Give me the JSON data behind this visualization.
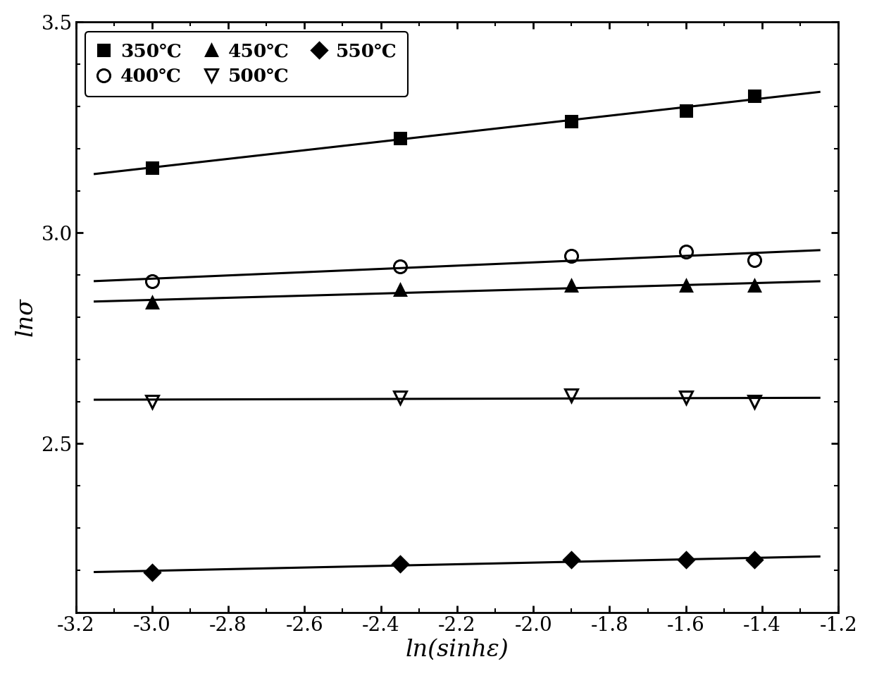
{
  "title": "",
  "xlabel": "ln(sinhε)",
  "ylabel": "lnσ",
  "xlim": [
    -3.2,
    -1.2
  ],
  "ylim": [
    2.1,
    3.5
  ],
  "xticks": [
    -3.2,
    -3.0,
    -2.8,
    -2.6,
    -2.4,
    -2.2,
    -2.0,
    -1.8,
    -1.6,
    -1.4,
    -1.2
  ],
  "yticks": [
    2.5,
    3.0,
    3.5
  ],
  "series": [
    {
      "label": "350℃",
      "x_data": [
        -3.0,
        -2.35,
        -1.9,
        -1.6,
        -1.42
      ],
      "y_data": [
        3.155,
        3.225,
        3.265,
        3.29,
        3.325
      ],
      "marker": "s",
      "fillstyle": "full",
      "color": "black",
      "markersize": 11
    },
    {
      "label": "400℃",
      "x_data": [
        -3.0,
        -2.35,
        -1.9,
        -1.6,
        -1.42
      ],
      "y_data": [
        2.885,
        2.92,
        2.945,
        2.955,
        2.935
      ],
      "marker": "o",
      "fillstyle": "none",
      "color": "black",
      "markersize": 13
    },
    {
      "label": "450℃",
      "x_data": [
        -3.0,
        -2.35,
        -1.9,
        -1.6,
        -1.42
      ],
      "y_data": [
        2.835,
        2.865,
        2.875,
        2.875,
        2.875
      ],
      "marker": "^",
      "fillstyle": "full",
      "color": "black",
      "markersize": 11
    },
    {
      "label": "500℃",
      "x_data": [
        -3.0,
        -2.35,
        -1.9,
        -1.6,
        -1.42
      ],
      "y_data": [
        2.6,
        2.61,
        2.615,
        2.61,
        2.6
      ],
      "marker": "v",
      "fillstyle": "none",
      "color": "black",
      "markersize": 13
    },
    {
      "label": "550℃",
      "x_data": [
        -3.0,
        -2.35,
        -1.9,
        -1.6,
        -1.42
      ],
      "y_data": [
        2.195,
        2.215,
        2.225,
        2.225,
        2.225
      ],
      "marker": "D",
      "fillstyle": "full",
      "color": "black",
      "markersize": 11
    }
  ],
  "line_xlim": [
    -3.15,
    -1.25
  ],
  "figure_width": 12.38,
  "figure_height": 9.59,
  "dpi": 100
}
